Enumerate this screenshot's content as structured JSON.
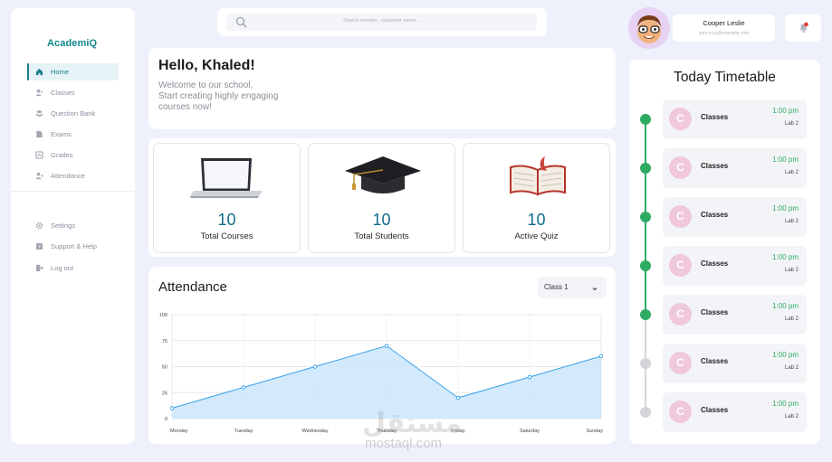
{
  "app": {
    "logo": "AcademiQ"
  },
  "sidebar": {
    "items": [
      {
        "label": "Home",
        "icon": "home-icon",
        "active": true
      },
      {
        "label": "Classes",
        "icon": "classes-icon"
      },
      {
        "label": "Question Bank",
        "icon": "question-bank-icon"
      },
      {
        "label": "Exams",
        "icon": "exams-icon"
      },
      {
        "label": "Grades",
        "icon": "grades-icon"
      },
      {
        "label": "Attendance",
        "icon": "attendance-icon"
      }
    ],
    "bottom_items": [
      {
        "label": "Settings",
        "icon": "gear-icon"
      },
      {
        "label": "Support & Help",
        "icon": "help-icon"
      },
      {
        "label": "Log out",
        "icon": "logout-icon"
      }
    ]
  },
  "search": {
    "placeholder": "Search number , customer name..."
  },
  "user": {
    "name": "Cooper Leslie",
    "email": "sara.cruz@example.com"
  },
  "welcome": {
    "title": "Hello, Khaled!",
    "line1": "Welcome to our school,",
    "line2": "Start creating highly engaging",
    "line3": "courses now!"
  },
  "stats": [
    {
      "value": "10",
      "label": "Total Courses",
      "icon": "laptop-icon"
    },
    {
      "value": "10",
      "label": "Total Students",
      "icon": "graduation-cap-icon"
    },
    {
      "value": "10",
      "label": "Active Quiz",
      "icon": "open-book-icon"
    }
  ],
  "attendance": {
    "title": "Attendance",
    "class_select": "Class 1"
  },
  "chart_data": {
    "type": "area",
    "categories": [
      "Monday",
      "Tuesday",
      "Wednesday",
      "Thursday",
      "Friday",
      "Saturday",
      "Sunday"
    ],
    "values": [
      10,
      30,
      50,
      70,
      20,
      40,
      60
    ],
    "yticks": [
      0,
      25,
      50,
      75,
      100
    ],
    "ylim": [
      0,
      100
    ],
    "grid": true,
    "colors": {
      "line": "#3aa0e8",
      "fill": "#cbe6fb"
    }
  },
  "timetable": {
    "title": "Today Timetable",
    "entries": [
      {
        "badge": "C",
        "name": "Classes",
        "time": "1:00 pm",
        "room": "Lab 2",
        "done": true
      },
      {
        "badge": "C",
        "name": "Classes",
        "time": "1:00 pm",
        "room": "Lab 2",
        "done": true
      },
      {
        "badge": "C",
        "name": "Classes",
        "time": "1:00 pm",
        "room": "Lab 2",
        "done": true
      },
      {
        "badge": "C",
        "name": "Classes",
        "time": "1:00 pm",
        "room": "Lab 2",
        "done": true
      },
      {
        "badge": "C",
        "name": "Classes",
        "time": "1:00 pm",
        "room": "Lab 2",
        "done": true
      },
      {
        "badge": "C",
        "name": "Classes",
        "time": "1:00 pm",
        "room": "Lab 2",
        "done": false
      },
      {
        "badge": "C",
        "name": "Classes",
        "time": "1:00 pm",
        "room": "Lab 2",
        "done": false
      }
    ]
  },
  "watermark": {
    "arabic": "مستقل",
    "latin": "mostaql.com"
  },
  "colors": {
    "accent": "#12868f",
    "value": "#0f6d8a",
    "timeline_active": "#2eab63",
    "timeline_inactive": "#d3d5da"
  }
}
